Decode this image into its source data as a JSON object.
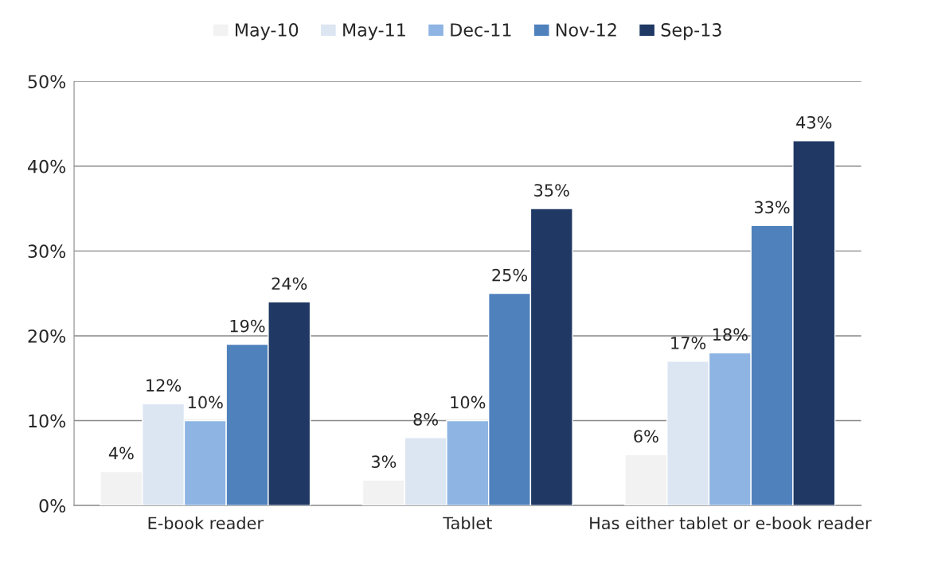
{
  "chart_data": {
    "type": "bar",
    "categories": [
      "E-book reader",
      "Tablet",
      "Has either tablet or e-book reader"
    ],
    "series": [
      {
        "name": "May-10",
        "color": "#f2f2f2",
        "values": [
          4,
          3,
          6
        ],
        "value_labels": [
          "4%",
          "3%",
          "6%"
        ]
      },
      {
        "name": "May-11",
        "color": "#dce6f2",
        "values": [
          12,
          8,
          17
        ],
        "value_labels": [
          "12%",
          "8%",
          "17%"
        ]
      },
      {
        "name": "Dec-11",
        "color": "#8db4e2",
        "values": [
          10,
          10,
          18
        ],
        "value_labels": [
          "10%",
          "10%",
          "18%"
        ]
      },
      {
        "name": "Nov-12",
        "color": "#4f81bd",
        "values": [
          19,
          25,
          33
        ],
        "value_labels": [
          "19%",
          "25%",
          "33%"
        ]
      },
      {
        "name": "Sep-13",
        "color": "#1f3864",
        "values": [
          24,
          35,
          43
        ],
        "value_labels": [
          "24%",
          "35%",
          "43%"
        ]
      }
    ],
    "ylim": [
      0,
      50
    ],
    "yticks": [
      {
        "value": 0,
        "label": "0%"
      },
      {
        "value": 10,
        "label": "10%"
      },
      {
        "value": 20,
        "label": "20%"
      },
      {
        "value": 30,
        "label": "30%"
      },
      {
        "value": 40,
        "label": "40%"
      },
      {
        "value": 50,
        "label": "50%"
      }
    ],
    "grid": "y",
    "legend": "top"
  }
}
